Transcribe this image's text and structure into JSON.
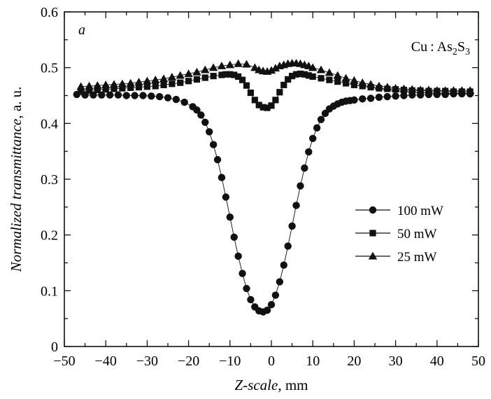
{
  "chart_data": {
    "type": "scatter",
    "panel_label": "a",
    "annotation": {
      "base": "Cu : As",
      "sub1": "2",
      "mid": "S",
      "sub2": "3"
    },
    "xlabel": {
      "italic": "Z-scale",
      "rest": ", mm"
    },
    "ylabel": {
      "italic": "Normalized transmittance",
      "rest": ", a. u."
    },
    "xlim": [
      -50,
      50
    ],
    "ylim": [
      0,
      0.6
    ],
    "xticks": [
      "−50",
      "−40",
      "−30",
      "−20",
      "−10",
      "0",
      "10",
      "20",
      "30",
      "40",
      "50"
    ],
    "xtick_values": [
      -50,
      -40,
      -30,
      -20,
      -10,
      0,
      10,
      20,
      30,
      40,
      50
    ],
    "yticks": [
      "0",
      "0.1",
      "0.2",
      "0.3",
      "0.4",
      "0.5",
      "0.6"
    ],
    "ytick_values": [
      0,
      0.1,
      0.2,
      0.3,
      0.4,
      0.5,
      0.6
    ],
    "grid": false,
    "legend_position": "right-middle",
    "series": [
      {
        "name": "100 mW",
        "marker": "circle",
        "x": [
          -47,
          -45,
          -43,
          -41,
          -39,
          -37,
          -35,
          -33,
          -31,
          -29,
          -27,
          -25,
          -23,
          -21,
          -19,
          -18,
          -17,
          -16,
          -15,
          -14,
          -13,
          -12,
          -11,
          -10,
          -9,
          -8,
          -7,
          -6,
          -5,
          -4,
          -3,
          -2,
          -1,
          0,
          1,
          2,
          3,
          4,
          5,
          6,
          7,
          8,
          9,
          10,
          11,
          12,
          13,
          14,
          15,
          16,
          17,
          18,
          19,
          20,
          22,
          24,
          26,
          28,
          30,
          32,
          34,
          36,
          38,
          40,
          42,
          44,
          46,
          48
        ],
        "y": [
          0.452,
          0.451,
          0.451,
          0.451,
          0.451,
          0.451,
          0.45,
          0.45,
          0.45,
          0.449,
          0.448,
          0.446,
          0.443,
          0.438,
          0.43,
          0.424,
          0.415,
          0.402,
          0.385,
          0.362,
          0.335,
          0.303,
          0.268,
          0.232,
          0.196,
          0.162,
          0.131,
          0.104,
          0.084,
          0.071,
          0.064,
          0.062,
          0.065,
          0.075,
          0.092,
          0.116,
          0.146,
          0.18,
          0.216,
          0.253,
          0.288,
          0.32,
          0.349,
          0.373,
          0.392,
          0.407,
          0.418,
          0.426,
          0.431,
          0.435,
          0.438,
          0.44,
          0.441,
          0.442,
          0.444,
          0.445,
          0.447,
          0.448,
          0.449,
          0.45,
          0.451,
          0.451,
          0.452,
          0.452,
          0.452,
          0.453,
          0.453,
          0.453
        ]
      },
      {
        "name": "50 mW",
        "marker": "square",
        "x": [
          -46,
          -44,
          -42,
          -40,
          -38,
          -36,
          -34,
          -32,
          -30,
          -28,
          -26,
          -24,
          -22,
          -20,
          -18,
          -16,
          -14,
          -12,
          -11,
          -10,
          -9,
          -8,
          -7,
          -6,
          -5,
          -4,
          -3,
          -2,
          -1,
          0,
          1,
          2,
          3,
          4,
          5,
          6,
          7,
          8,
          9,
          10,
          12,
          14,
          16,
          18,
          20,
          22,
          24,
          26,
          28,
          30,
          32,
          34,
          36,
          38,
          40,
          42,
          44,
          46,
          48
        ],
        "y": [
          0.458,
          0.459,
          0.46,
          0.461,
          0.462,
          0.463,
          0.464,
          0.465,
          0.466,
          0.467,
          0.469,
          0.471,
          0.473,
          0.476,
          0.479,
          0.482,
          0.485,
          0.487,
          0.488,
          0.488,
          0.487,
          0.484,
          0.478,
          0.468,
          0.455,
          0.442,
          0.433,
          0.429,
          0.428,
          0.432,
          0.442,
          0.456,
          0.469,
          0.479,
          0.485,
          0.488,
          0.489,
          0.488,
          0.486,
          0.484,
          0.481,
          0.478,
          0.475,
          0.472,
          0.469,
          0.467,
          0.465,
          0.463,
          0.462,
          0.461,
          0.46,
          0.459,
          0.459,
          0.458,
          0.458,
          0.458,
          0.457,
          0.457,
          0.457
        ]
      },
      {
        "name": "25 mW",
        "marker": "triangle",
        "x": [
          -46,
          -44,
          -42,
          -40,
          -38,
          -36,
          -34,
          -32,
          -30,
          -28,
          -26,
          -24,
          -22,
          -20,
          -18,
          -16,
          -14,
          -12,
          -10,
          -8,
          -6,
          -4,
          -3,
          -2,
          -1,
          0,
          1,
          2,
          3,
          4,
          5,
          6,
          7,
          8,
          9,
          10,
          12,
          14,
          16,
          18,
          20,
          22,
          24,
          26,
          28,
          30,
          32,
          34,
          36,
          38,
          40,
          42,
          44,
          46,
          48
        ],
        "y": [
          0.466,
          0.467,
          0.468,
          0.469,
          0.47,
          0.471,
          0.472,
          0.474,
          0.476,
          0.478,
          0.48,
          0.483,
          0.486,
          0.489,
          0.492,
          0.496,
          0.5,
          0.503,
          0.505,
          0.507,
          0.506,
          0.5,
          0.496,
          0.494,
          0.493,
          0.495,
          0.499,
          0.503,
          0.505,
          0.507,
          0.508,
          0.508,
          0.507,
          0.505,
          0.503,
          0.5,
          0.496,
          0.491,
          0.486,
          0.481,
          0.477,
          0.473,
          0.47,
          0.467,
          0.465,
          0.463,
          0.462,
          0.461,
          0.46,
          0.46,
          0.459,
          0.459,
          0.459,
          0.459,
          0.459
        ]
      }
    ]
  }
}
